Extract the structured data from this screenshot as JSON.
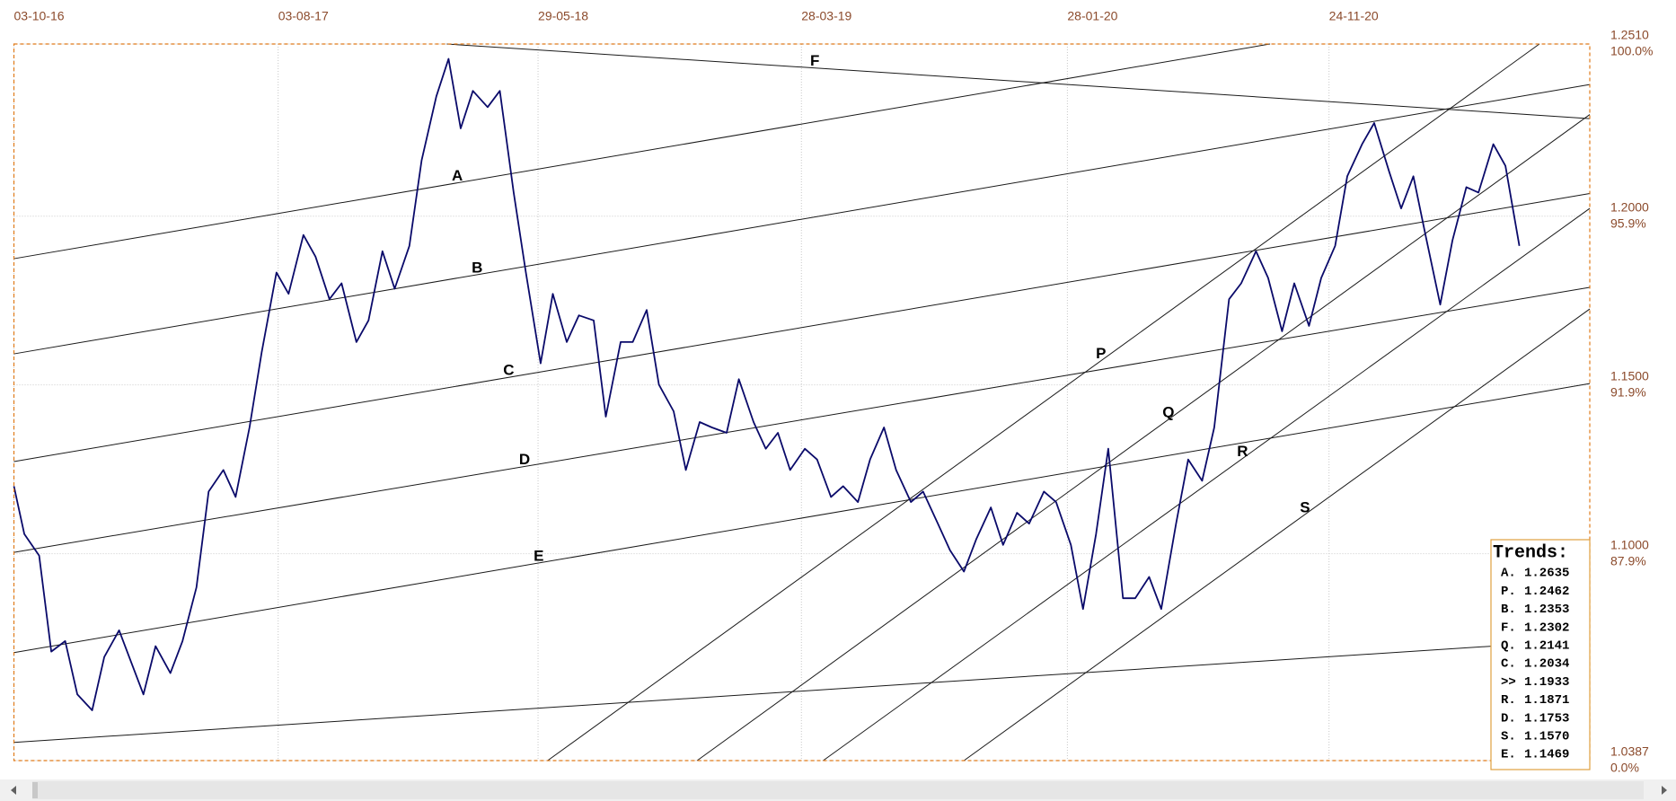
{
  "chart_data": {
    "type": "line",
    "xlim": [
      "03-10-16",
      "20-09-21"
    ],
    "xticks": [
      "03-10-16",
      "03-08-17",
      "29-05-18",
      "28-03-19",
      "28-01-20",
      "24-11-20"
    ],
    "ylim": [
      1.0387,
      1.251
    ],
    "yticks": [
      {
        "value": 1.0387,
        "label": "1.0387"
      },
      {
        "value": 1.1,
        "label": "1.1000"
      },
      {
        "value": 1.15,
        "label": "1.1500"
      },
      {
        "value": 1.2,
        "label": "1.2000"
      },
      {
        "value": 1.251,
        "label": "1.2510"
      }
    ],
    "ytick_percent_labels": [
      "0.0%",
      "87.9%",
      "91.9%",
      "95.9%",
      "100.0%"
    ],
    "grid": true,
    "x": [
      "03-10-16",
      "15-10-16",
      "01-11-16",
      "15-11-16",
      "01-12-16",
      "15-12-16",
      "01-01-17",
      "15-01-17",
      "01-02-17",
      "15-02-17",
      "01-03-17",
      "15-03-17",
      "01-04-17",
      "15-04-17",
      "01-05-17",
      "15-05-17",
      "01-06-17",
      "15-06-17",
      "01-07-17",
      "15-07-17",
      "01-08-17",
      "15-08-17",
      "01-09-17",
      "15-09-17",
      "01-10-17",
      "15-10-17",
      "01-11-17",
      "15-11-17",
      "01-12-17",
      "15-12-17",
      "01-01-18",
      "15-01-18",
      "01-02-18",
      "15-02-18",
      "01-03-18",
      "15-03-18",
      "01-04-18",
      "15-04-18",
      "01-05-18",
      "15-05-18",
      "01-06-18",
      "15-06-18",
      "01-07-18",
      "15-07-18",
      "01-08-18",
      "15-08-18",
      "01-09-18",
      "15-09-18",
      "01-10-18",
      "15-10-18",
      "01-11-18",
      "15-11-18",
      "01-12-18",
      "15-12-18",
      "01-01-19",
      "15-01-19",
      "01-02-19",
      "15-02-19",
      "01-03-19",
      "15-03-19",
      "01-04-19",
      "15-04-19",
      "01-05-19",
      "15-05-19",
      "01-06-19",
      "15-06-19",
      "01-07-19",
      "15-07-19",
      "01-08-19",
      "15-08-19",
      "01-09-19",
      "15-09-19",
      "01-10-19",
      "15-10-19",
      "01-11-19",
      "15-11-19",
      "01-12-19",
      "15-12-19",
      "01-01-20",
      "15-01-20",
      "01-02-20",
      "15-02-20",
      "01-03-20",
      "15-03-20",
      "01-04-20",
      "15-04-20",
      "01-05-20",
      "15-05-20",
      "01-06-20",
      "15-06-20",
      "01-07-20",
      "15-07-20",
      "01-08-20",
      "15-08-20",
      "01-09-20",
      "15-09-20",
      "01-10-20",
      "15-10-20",
      "01-11-20",
      "15-11-20",
      "01-12-20",
      "15-12-20",
      "01-01-21",
      "15-01-21",
      "01-02-21",
      "15-02-21",
      "01-03-21",
      "15-03-21",
      "01-04-21",
      "15-04-21",
      "01-05-21",
      "15-05-21",
      "01-06-21",
      "15-06-21",
      "01-07-21"
    ],
    "series": [
      {
        "color": "#0a0a6a",
        "values": [
          1.12,
          1.1058,
          1.0994,
          1.071,
          1.0741,
          1.0583,
          1.0536,
          1.0694,
          1.0773,
          1.0678,
          1.0583,
          1.0726,
          1.0646,
          1.0741,
          1.09,
          1.1184,
          1.1248,
          1.1168,
          1.1374,
          1.1596,
          1.1833,
          1.177,
          1.1944,
          1.188,
          1.1754,
          1.1801,
          1.1627,
          1.1691,
          1.1896,
          1.1785,
          1.1912,
          1.2165,
          1.2355,
          1.2466,
          1.226,
          1.2371,
          1.2323,
          1.2371,
          1.207,
          1.1833,
          1.1564,
          1.177,
          1.1627,
          1.1706,
          1.1691,
          1.1406,
          1.1627,
          1.1627,
          1.1722,
          1.1501,
          1.1422,
          1.1248,
          1.139,
          1.1374,
          1.1358,
          1.1517,
          1.139,
          1.1311,
          1.1358,
          1.1248,
          1.1311,
          1.1279,
          1.1168,
          1.12,
          1.1153,
          1.1279,
          1.1374,
          1.1248,
          1.1153,
          1.1184,
          1.1089,
          1.101,
          1.0947,
          1.1042,
          1.1137,
          1.1026,
          1.1121,
          1.1089,
          1.1184,
          1.1153,
          1.1026,
          1.0836,
          1.1058,
          1.1311,
          1.0868,
          1.0868,
          1.0931,
          1.0836,
          1.1089,
          1.1279,
          1.1216,
          1.1374,
          1.1754,
          1.1801,
          1.1896,
          1.1817,
          1.1659,
          1.1801,
          1.1675,
          1.1817,
          1.1912,
          1.2118,
          1.2213,
          1.2276,
          1.2133,
          1.2023,
          1.2118,
          1.1944,
          1.1738,
          1.1928,
          1.2086,
          1.207,
          1.2213,
          1.2149,
          1.1912
        ]
      }
    ],
    "trendlines": [
      {
        "label": "A",
        "x": [
          "03-10-16",
          "17-09-20"
        ],
        "y": [
          1.1874,
          1.251
        ]
      },
      {
        "label": "B",
        "x": [
          "03-10-16",
          "20-09-21"
        ],
        "y": [
          1.1592,
          1.239
        ]
      },
      {
        "label": "C",
        "x": [
          "03-10-16",
          "20-09-21"
        ],
        "y": [
          1.1273,
          1.2067
        ]
      },
      {
        "label": "D",
        "x": [
          "03-10-16",
          "20-09-21"
        ],
        "y": [
          1.1004,
          1.1789
        ]
      },
      {
        "label": "E",
        "x": [
          "03-10-16",
          "20-09-21"
        ],
        "y": [
          1.0707,
          1.1504
        ]
      },
      {
        "x": [
          "03-10-16",
          "30-05-21"
        ],
        "y": [
          1.0441,
          1.0726
        ]
      },
      {
        "label": "F",
        "x": [
          "13-02-18",
          "20-09-21"
        ],
        "y": [
          1.251,
          1.2289
        ]
      },
      {
        "label": "P",
        "x": [
          "09-06-18",
          "24-07-21"
        ],
        "y": [
          1.0387,
          1.251
        ]
      },
      {
        "label": "Q",
        "x": [
          "28-11-18",
          "20-09-21"
        ],
        "y": [
          1.0387,
          1.2301
        ]
      },
      {
        "label": "R",
        "x": [
          "22-04-19",
          "20-09-21"
        ],
        "y": [
          1.0387,
          1.2023
        ]
      },
      {
        "label": "S",
        "x": [
          "01-10-19",
          "20-09-21"
        ],
        "y": [
          1.0387,
          1.1725
        ]
      }
    ],
    "trends_table": {
      "title": "Trends:",
      "rows": [
        [
          "A.",
          "1.2635"
        ],
        [
          "P.",
          "1.2462"
        ],
        [
          "B.",
          "1.2353"
        ],
        [
          "F.",
          "1.2302"
        ],
        [
          "Q.",
          "1.2141"
        ],
        [
          "C.",
          "1.2034"
        ],
        [
          ">>",
          "1.1933"
        ],
        [
          "R.",
          "1.1871"
        ],
        [
          "D.",
          "1.1753"
        ],
        [
          "S.",
          "1.1570"
        ],
        [
          "E.",
          "1.1469"
        ]
      ]
    }
  }
}
